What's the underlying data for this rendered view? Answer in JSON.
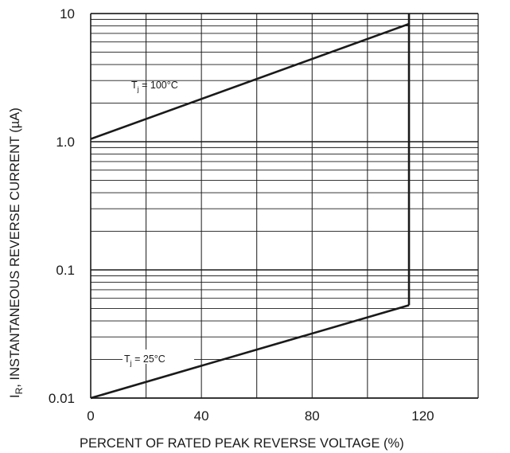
{
  "chart_data": {
    "type": "line",
    "title": "",
    "xlabel": "PERCENT OF RATED PEAK REVERSE VOLTAGE (%)",
    "ylabel_main": "I",
    "ylabel_sub": "R",
    "ylabel_rest": ", INSTANTANEOUS REVERSE CURRENT (µA)",
    "y_scale": "log",
    "xlim": [
      0,
      140
    ],
    "ylim": [
      0.01,
      10
    ],
    "x_ticks": [
      0,
      40,
      80,
      120
    ],
    "x_tick_labels": [
      "0",
      "40",
      "80",
      "120"
    ],
    "y_ticks": [
      0.01,
      0.1,
      1,
      10
    ],
    "y_tick_labels": [
      "0.01",
      "0.1",
      "1.0",
      "10"
    ],
    "grid": true,
    "series": [
      {
        "name_main": "T",
        "name_sub": "j",
        "name_rest": " = 100°C",
        "x": [
          0,
          115
        ],
        "y": [
          1.05,
          8.3
        ]
      },
      {
        "name_main": "T",
        "name_sub": "j",
        "name_rest": " = 25°C",
        "x": [
          0,
          115
        ],
        "y": [
          0.01,
          0.053
        ]
      }
    ],
    "vertical_limit_x": 115,
    "colors": {
      "line": "#1a1a1a",
      "grid": "#1a1a1a"
    }
  }
}
